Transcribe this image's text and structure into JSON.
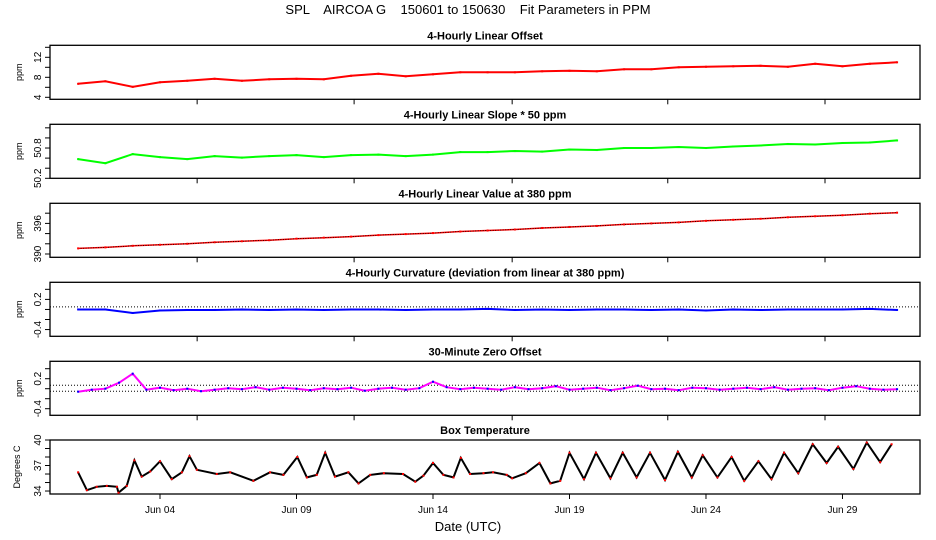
{
  "chart_data": {
    "type": "line",
    "title": "SPL    AIRCOA G    150601 to 150630    Fit Parameters in PPM",
    "xlabel": "Date (UTC)",
    "x_units": "days since Jun 01 00:00 UTC",
    "xlim": [
      -1.03,
      30.84
    ],
    "x_ticks": [
      {
        "day": 3,
        "label": "Jun 04"
      },
      {
        "day": 8,
        "label": "Jun 09"
      },
      {
        "day": 13,
        "label": "Jun 14"
      },
      {
        "day": 18,
        "label": "Jun 19"
      },
      {
        "day": 23,
        "label": "Jun 24"
      },
      {
        "day": 28,
        "label": "Jun 29"
      }
    ],
    "upper_panel_tick_days": [
      4.36,
      10.11,
      15.9,
      21.6,
      27.36
    ],
    "panels": [
      {
        "title": "4-Hourly Linear Offset",
        "ylabel": "ppm",
        "ylim": [
          3.6,
          14.4
        ],
        "yticks": [
          4,
          6,
          8,
          10,
          12,
          14
        ],
        "ytick_labels": [
          "4",
          "",
          "8",
          "",
          "12",
          ""
        ],
        "color": "#ff0000",
        "x_step_days": 1,
        "values": [
          6.7,
          7.2,
          6.1,
          7.0,
          7.3,
          7.7,
          7.3,
          7.6,
          7.7,
          7.6,
          8.3,
          8.7,
          8.2,
          8.6,
          9.0,
          9.0,
          9.0,
          9.2,
          9.3,
          9.2,
          9.6,
          9.6,
          10.0,
          10.1,
          10.2,
          10.3,
          10.1,
          10.7,
          10.2,
          10.7,
          11.0
        ]
      },
      {
        "title": "4-Hourly Linear Slope * 50 ppm",
        "ylabel": "ppm",
        "ylim": [
          50.2,
          51.27
        ],
        "yticks": [
          50.2,
          50.4,
          50.6,
          50.8,
          51.0,
          51.2
        ],
        "ytick_labels": [
          "50.2",
          "",
          "",
          "50.8",
          "",
          ""
        ],
        "color": "#00ff00",
        "x_step_days": 1,
        "values": [
          50.58,
          50.5,
          50.68,
          50.62,
          50.58,
          50.64,
          50.61,
          50.64,
          50.66,
          50.62,
          50.66,
          50.67,
          50.64,
          50.67,
          50.72,
          50.72,
          50.74,
          50.73,
          50.77,
          50.76,
          50.8,
          50.8,
          50.82,
          50.8,
          50.83,
          50.85,
          50.88,
          50.87,
          50.9,
          50.91,
          50.95
        ]
      },
      {
        "title": "4-Hourly Linear Value at 380 ppm",
        "ylabel": "ppm",
        "ylim": [
          389.35,
          399.94
        ],
        "yticks": [
          390,
          392,
          394,
          396,
          398
        ],
        "ytick_labels": [
          "390",
          "",
          "",
          "396",
          ""
        ],
        "color": "#ff0000",
        "overlay_color": "#000000",
        "x_step_days": 1,
        "values": [
          391.1,
          391.3,
          391.6,
          391.8,
          392.0,
          392.3,
          392.5,
          392.7,
          393.0,
          393.2,
          393.4,
          393.7,
          393.9,
          394.1,
          394.4,
          394.6,
          394.8,
          395.1,
          395.3,
          395.5,
          395.8,
          396.0,
          396.2,
          396.5,
          396.7,
          396.9,
          397.2,
          397.4,
          397.6,
          397.9,
          398.1
        ]
      },
      {
        "title": "4-Hourly Curvature (deviation from linear at 380 ppm)",
        "ylabel": "ppm",
        "ylim": [
          -0.534,
          0.54
        ],
        "yticks": [
          -0.4,
          -0.2,
          0,
          0.2,
          0.4
        ],
        "ytick_labels": [
          "-0.4",
          "",
          "",
          "0.2",
          ""
        ],
        "color": "#0000ff",
        "reference_lines": [
          0.05
        ],
        "x_step_days": 1,
        "values": [
          0.0,
          0.0,
          -0.07,
          -0.02,
          -0.01,
          -0.01,
          0.0,
          -0.01,
          0.0,
          -0.01,
          0.0,
          0.0,
          -0.01,
          0.0,
          0.0,
          0.01,
          -0.01,
          0.0,
          -0.01,
          0.0,
          0.0,
          -0.01,
          0.0,
          -0.02,
          0.0,
          -0.01,
          0.0,
          0.0,
          0.0,
          0.01,
          -0.01
        ]
      },
      {
        "title": "30-Minute Zero Offset",
        "ylabel": "ppm",
        "ylim": [
          -0.532,
          0.548
        ],
        "yticks": [
          -0.4,
          -0.2,
          0,
          0.2,
          0.4
        ],
        "ytick_labels": [
          "-0.4",
          "",
          "",
          "0.2",
          ""
        ],
        "color": "#ff00ff",
        "point_color": "#0000ff",
        "reference_lines": [
          0.07,
          -0.05
        ],
        "x_step_days": 0.5,
        "values": [
          -0.06,
          -0.02,
          0.0,
          0.12,
          0.3,
          -0.02,
          0.02,
          -0.03,
          0.0,
          -0.05,
          -0.02,
          0.01,
          -0.01,
          0.03,
          -0.02,
          0.02,
          0.0,
          -0.03,
          0.01,
          -0.01,
          0.02,
          -0.04,
          0.0,
          0.02,
          -0.02,
          0.01,
          0.14,
          0.03,
          -0.01,
          0.02,
          0.0,
          -0.02,
          0.03,
          -0.01,
          0.01,
          0.05,
          -0.02,
          0.0,
          0.02,
          -0.03,
          0.01,
          0.06,
          -0.01,
          0.0,
          -0.03,
          0.02,
          0.01,
          -0.02,
          0.0,
          0.02,
          -0.01,
          0.03,
          -0.02,
          0.0,
          0.01,
          -0.03,
          0.02,
          0.05,
          0.0,
          -0.02,
          -0.01
        ]
      },
      {
        "title": "Box Temperature",
        "ylabel": "Degrees C",
        "ylim": [
          33.65,
          40
        ],
        "yticks": [
          34,
          35,
          36,
          37,
          38,
          39,
          40
        ],
        "ytick_labels": [
          "34",
          "",
          "",
          "37",
          "",
          "",
          "40"
        ],
        "color": "#000000",
        "point_color": "#ff0000",
        "points": [
          [
            0,
            36.2
          ],
          [
            0.32,
            34.1
          ],
          [
            0.68,
            34.5
          ],
          [
            1.05,
            34.6
          ],
          [
            1.42,
            34.5
          ],
          [
            1.48,
            33.8
          ],
          [
            1.78,
            34.6
          ],
          [
            2.06,
            37.6
          ],
          [
            2.33,
            35.7
          ],
          [
            2.64,
            36.3
          ],
          [
            3.0,
            37.5
          ],
          [
            3.43,
            35.4
          ],
          [
            3.8,
            36.2
          ],
          [
            4.08,
            38.1
          ],
          [
            4.35,
            36.5
          ],
          [
            5.08,
            36.0
          ],
          [
            5.57,
            36.2
          ],
          [
            6.42,
            35.2
          ],
          [
            7.03,
            36.2
          ],
          [
            7.52,
            35.9
          ],
          [
            8.03,
            38.0
          ],
          [
            8.38,
            35.6
          ],
          [
            8.74,
            35.9
          ],
          [
            9.05,
            38.5
          ],
          [
            9.41,
            35.7
          ],
          [
            9.9,
            36.2
          ],
          [
            10.27,
            34.9
          ],
          [
            10.7,
            35.9
          ],
          [
            11.2,
            36.1
          ],
          [
            11.9,
            36.0
          ],
          [
            12.35,
            35.1
          ],
          [
            12.65,
            35.8
          ],
          [
            13.0,
            37.3
          ],
          [
            13.38,
            35.9
          ],
          [
            13.75,
            35.6
          ],
          [
            14.02,
            37.9
          ],
          [
            14.36,
            36.0
          ],
          [
            14.85,
            36.1
          ],
          [
            15.2,
            36.2
          ],
          [
            15.7,
            35.9
          ],
          [
            15.9,
            35.5
          ],
          [
            16.4,
            36.1
          ],
          [
            16.9,
            37.3
          ],
          [
            17.3,
            34.9
          ],
          [
            17.66,
            35.2
          ],
          [
            18.0,
            38.5
          ],
          [
            18.53,
            35.4
          ],
          [
            18.97,
            38.5
          ],
          [
            19.5,
            35.5
          ],
          [
            19.95,
            38.5
          ],
          [
            20.46,
            35.6
          ],
          [
            20.95,
            38.5
          ],
          [
            21.5,
            35.3
          ],
          [
            21.97,
            38.6
          ],
          [
            22.48,
            35.6
          ],
          [
            22.88,
            38.2
          ],
          [
            23.42,
            35.6
          ],
          [
            23.94,
            38.0
          ],
          [
            24.4,
            35.2
          ],
          [
            24.92,
            37.5
          ],
          [
            25.4,
            35.4
          ],
          [
            25.86,
            38.5
          ],
          [
            26.38,
            36.1
          ],
          [
            26.91,
            39.5
          ],
          [
            27.42,
            37.3
          ],
          [
            27.84,
            39.2
          ],
          [
            28.4,
            36.6
          ],
          [
            28.89,
            39.7
          ],
          [
            29.38,
            37.4
          ],
          [
            29.8,
            39.5
          ]
        ]
      }
    ]
  }
}
